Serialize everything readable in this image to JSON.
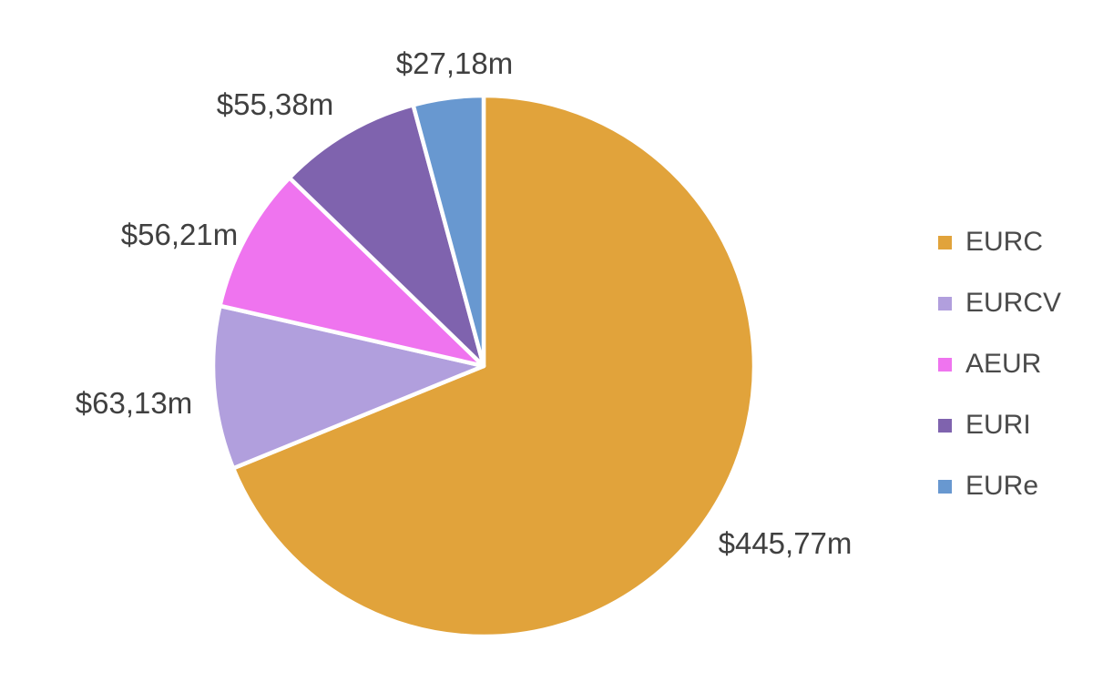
{
  "figure": {
    "background": "#ffffff",
    "title": ""
  },
  "chart_data": {
    "type": "pie",
    "title": "",
    "categories": [
      "EURC",
      "EURCV",
      "AEUR",
      "EURI",
      "EURe"
    ],
    "values": [
      445.77,
      63.13,
      56.21,
      55.38,
      27.18
    ],
    "value_labels": [
      "$445,77m",
      "$63,13m",
      "$56,21m",
      "$55,38m",
      "$27,18m"
    ],
    "colors": [
      "#e1a33b",
      "#b19fdd",
      "#ef74ef",
      "#7f63ae",
      "#6898d0"
    ],
    "slice_border_color": "#ffffff",
    "label_color": "#404040",
    "start_angle_deg": 0,
    "direction": "clockwise",
    "legend": {
      "position": "right",
      "entries": [
        "EURC",
        "EURCV",
        "AEUR",
        "EURI",
        "EURe"
      ],
      "text_color": "#4a4a4a"
    }
  }
}
